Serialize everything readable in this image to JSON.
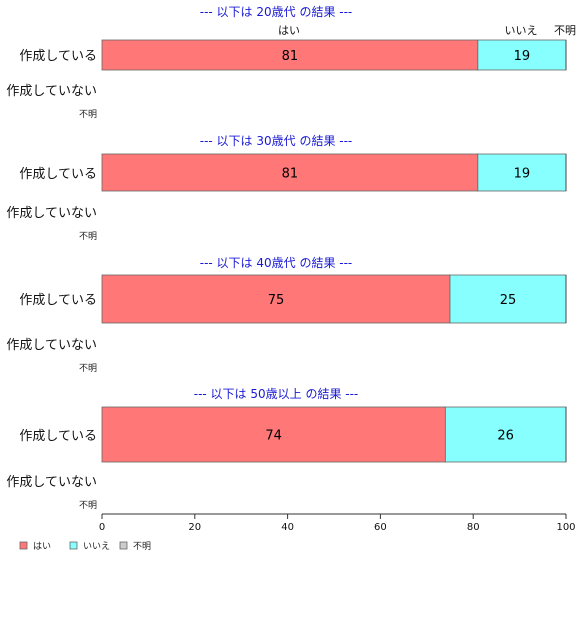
{
  "chart_data": {
    "type": "bar",
    "orientation": "horizontal",
    "stacked": true,
    "xlim": [
      0,
      100
    ],
    "x_ticks": [
      0,
      20,
      40,
      60,
      80,
      100
    ],
    "legend_placement": "bottom-left",
    "top_labels": [
      "はい",
      "いいえ",
      "不明"
    ],
    "legend": [
      {
        "label": "はい",
        "color": "#ff7777"
      },
      {
        "label": "いいえ",
        "color": "#88ffff"
      },
      {
        "label": "不明",
        "color": "#cccccc"
      }
    ],
    "panels": [
      {
        "title": "--- 以下は 20歳代 の結果 ---",
        "row_label": "作成している",
        "row_label_2": "作成していない",
        "row_label_3": "不明",
        "values": [
          81,
          19,
          0
        ]
      },
      {
        "title": "--- 以下は 30歳代 の結果 ---",
        "row_label": "作成している",
        "row_label_2": "作成していない",
        "row_label_3": "不明",
        "values": [
          81,
          19,
          0
        ]
      },
      {
        "title": "--- 以下は 40歳代 の結果 ---",
        "row_label": "作成している",
        "row_label_2": "作成していない",
        "row_label_3": "不明",
        "values": [
          75,
          25,
          0
        ]
      },
      {
        "title": "--- 以下は 50歳以上 の結果 ---",
        "row_label": "作成している",
        "row_label_2": "作成していない",
        "row_label_3": "不明",
        "values": [
          74,
          26,
          0
        ]
      }
    ]
  }
}
